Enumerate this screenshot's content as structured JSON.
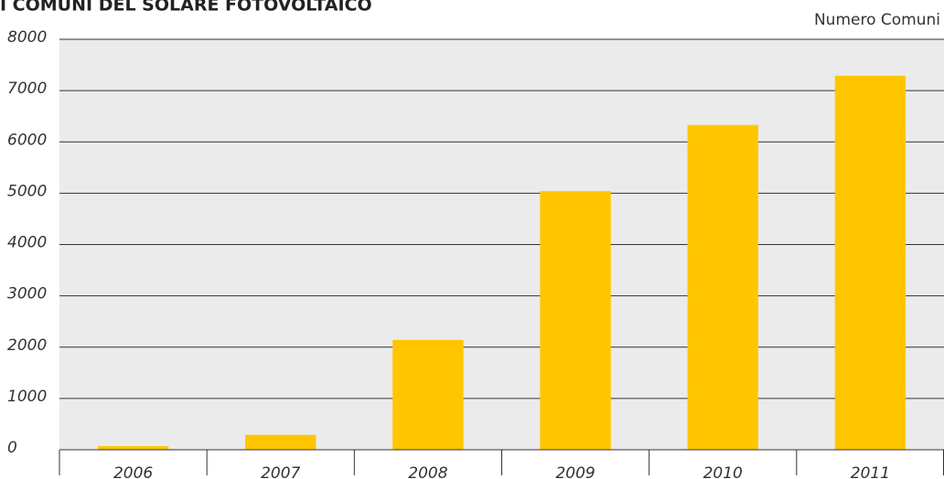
{
  "chart_data": {
    "type": "bar",
    "title": "I COMUNI DEL SOLARE FOTOVOLTAICO",
    "y_label": "Numero Comuni",
    "categories": [
      "2006",
      "2007",
      "2008",
      "2009",
      "2010",
      "2011"
    ],
    "values": [
      70,
      290,
      2140,
      5040,
      6330,
      7290
    ],
    "color": "#ffc600",
    "ylim": [
      0,
      8000
    ],
    "yticks": [
      0,
      1000,
      2000,
      3000,
      4000,
      5000,
      6000,
      7000,
      8000
    ],
    "grid": true
  }
}
